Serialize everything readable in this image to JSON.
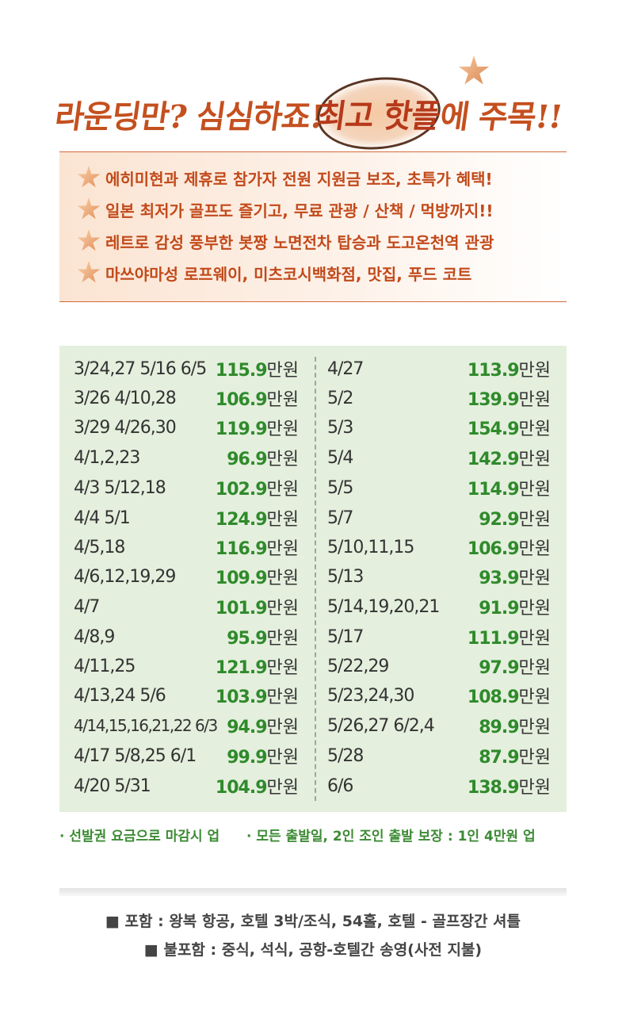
{
  "headline": {
    "part1": "라운딩만? 심심하죠!",
    "highlight": "최고 핫플",
    "part2": "에 주목!!"
  },
  "features": [
    "에히미현과 제휴로 참가자 전원 지원금 보조, 초특가 혜택!",
    "일본 최저가 골프도 즐기고, 무료 관광 / 산책 / 먹방까지!!",
    "레트로 감성 풍부한 봇짱 노면전차 탑승과 도고온천역 관광",
    "마쓰야마성 로프웨이, 미츠코시백화점, 맛집, 푸드 코트"
  ],
  "price_unit": "만원",
  "prices_left": [
    {
      "dates": "3/24,27  5/16  6/5",
      "price": "115.9"
    },
    {
      "dates": "3/26  4/10,28",
      "price": "106.9"
    },
    {
      "dates": "3/29  4/26,30",
      "price": "119.9"
    },
    {
      "dates": "4/1,2,23",
      "price": "96.9"
    },
    {
      "dates": "4/3  5/12,18",
      "price": "102.9"
    },
    {
      "dates": "4/4  5/1",
      "price": "124.9"
    },
    {
      "dates": "4/5,18",
      "price": "116.9"
    },
    {
      "dates": "4/6,12,19,29",
      "price": "109.9"
    },
    {
      "dates": "4/7",
      "price": "101.9"
    },
    {
      "dates": "4/8,9",
      "price": "95.9"
    },
    {
      "dates": "4/11,25",
      "price": "121.9"
    },
    {
      "dates": "4/13,24  5/6",
      "price": "103.9"
    },
    {
      "dates": "4/14,15,16,21,22  6/3",
      "price": "94.9"
    },
    {
      "dates": "4/17  5/8,25  6/1",
      "price": "99.9"
    },
    {
      "dates": "4/20  5/31",
      "price": "104.9"
    }
  ],
  "prices_right": [
    {
      "dates": "4/27",
      "price": "113.9"
    },
    {
      "dates": "5/2",
      "price": "139.9"
    },
    {
      "dates": "5/3",
      "price": "154.9"
    },
    {
      "dates": "5/4",
      "price": "142.9"
    },
    {
      "dates": "5/5",
      "price": "114.9"
    },
    {
      "dates": "5/7",
      "price": "92.9"
    },
    {
      "dates": "5/10,11,15",
      "price": "106.9"
    },
    {
      "dates": "5/13",
      "price": "93.9"
    },
    {
      "dates": "5/14,19,20,21",
      "price": "91.9"
    },
    {
      "dates": "5/17",
      "price": "111.9"
    },
    {
      "dates": "5/22,29",
      "price": "97.9"
    },
    {
      "dates": "5/23,24,30",
      "price": "108.9"
    },
    {
      "dates": "5/26,27  6/2,4",
      "price": "89.9"
    },
    {
      "dates": "5/28",
      "price": "87.9"
    },
    {
      "dates": "6/6",
      "price": "138.9"
    }
  ],
  "notes": {
    "note1": "· 선발권 요금으로 마감시 업",
    "note2": "· 모든 출발일, 2인 조인 출발 보장 : 1인 4만원 업"
  },
  "footer": {
    "included": "■ 포함 : 왕복 항공, 호텔 3박/조식, 54홀, 호텔 - 골프장간 셔틀",
    "excluded": "■ 불포함 : 중식, 석식, 공항-호텔간 송영(사전 지불)"
  },
  "colors": {
    "accent_orange": "#c4501f",
    "price_green": "#2f8a2b",
    "table_bg": "#e4efdd"
  }
}
